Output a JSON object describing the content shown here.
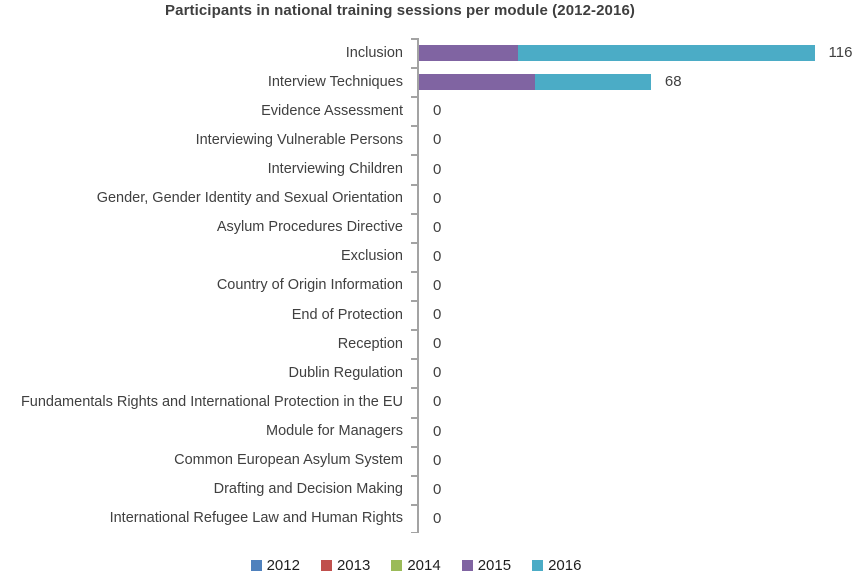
{
  "title": "Participants in national training sessions per module (2012-2016)",
  "chart_data": {
    "type": "bar",
    "orientation": "horizontal",
    "stacked": true,
    "title": "Participants in national training sessions per module (2012-2016)",
    "categories": [
      "Inclusion",
      "Interview Techniques",
      "Evidence Assessment",
      "Interviewing Vulnerable Persons",
      "Interviewing Children",
      "Gender, Gender Identity and Sexual Orientation",
      "Asylum Procedures Directive",
      "Exclusion",
      "Country of Origin Information",
      "End of Protection",
      "Reception",
      "Dublin Regulation",
      "Fundamentals Rights and International Protection in the EU",
      "Module for Managers",
      "Common European Asylum System",
      "Drafting and Decision Making",
      "International Refugee Law and Human Rights"
    ],
    "series": [
      {
        "name": "2012",
        "color": "#4F81BD",
        "values": [
          0,
          0,
          0,
          0,
          0,
          0,
          0,
          0,
          0,
          0,
          0,
          0,
          0,
          0,
          0,
          0,
          0
        ]
      },
      {
        "name": "2013",
        "color": "#C0504D",
        "values": [
          0,
          0,
          0,
          0,
          0,
          0,
          0,
          0,
          0,
          0,
          0,
          0,
          0,
          0,
          0,
          0,
          0
        ]
      },
      {
        "name": "2014",
        "color": "#9BBB59",
        "values": [
          0,
          0,
          0,
          0,
          0,
          0,
          0,
          0,
          0,
          0,
          0,
          0,
          0,
          0,
          0,
          0,
          0
        ]
      },
      {
        "name": "2015",
        "color": "#8064A2",
        "values": [
          29,
          34,
          0,
          0,
          0,
          0,
          0,
          0,
          0,
          0,
          0,
          0,
          0,
          0,
          0,
          0,
          0
        ]
      },
      {
        "name": "2016",
        "color": "#4BACC6",
        "values": [
          87,
          34,
          0,
          0,
          0,
          0,
          0,
          0,
          0,
          0,
          0,
          0,
          0,
          0,
          0,
          0,
          0
        ]
      }
    ],
    "totals": [
      116,
      68,
      0,
      0,
      0,
      0,
      0,
      0,
      0,
      0,
      0,
      0,
      0,
      0,
      0,
      0,
      0
    ],
    "value_labels": [
      "116",
      "68",
      "0",
      "0",
      "0",
      "0",
      "0",
      "0",
      "0",
      "0",
      "0",
      "0",
      "0",
      "0",
      "0",
      "0",
      "0"
    ],
    "legend_entries": [
      "2012",
      "2013",
      "2014",
      "2015",
      "2016"
    ],
    "legend_position": "bottom",
    "grid": false,
    "axis_labels_visible": false,
    "axis_color": "#A3A3A3",
    "text_color": "#404040"
  }
}
